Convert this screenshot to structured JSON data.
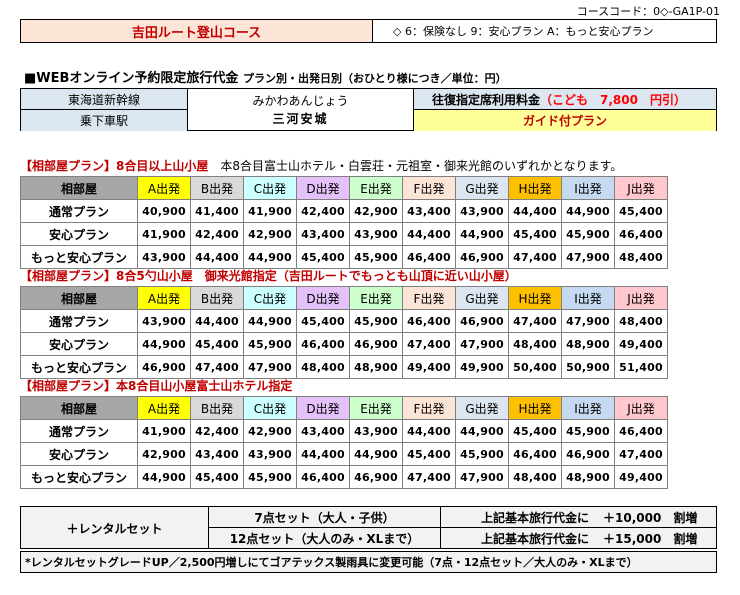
{
  "course_code": "コースコード：0◇-GA1P-01",
  "header": {
    "title": "吉田ルート登山コース",
    "note": "◇ 6：保険なし 9：安心プラン A：もっと安心プラン"
  },
  "heading": {
    "main": "■WEBオンライン予約限定旅行代金",
    "sub": "プラン別・出発日別（おひとり様につき／単位：円）"
  },
  "info": {
    "line": "東海道新幹線",
    "station": "乗下車駅",
    "reading": "みかわあんじょう",
    "name": "三河安城",
    "fare_label": "往復指定席利用料金",
    "fare_child": "（こども　7,800　円引）",
    "guide": "ガイド付プラン"
  },
  "colors": {
    "A": "#ffff00",
    "B": "#d9d9d9",
    "C": "#ccffff",
    "D": "#e4c1f9",
    "E": "#ccffcc",
    "F": "#fce4d6",
    "G": "#dce6f1",
    "H": "#ffc000",
    "I": "#c5d9f1",
    "J": "#ffc7ce"
  },
  "columns": [
    "相部屋",
    "A出発",
    "B出発",
    "C出発",
    "D出発",
    "E出発",
    "F出発",
    "G出発",
    "H出発",
    "I出発",
    "J出発"
  ],
  "sections": [
    {
      "title": "【相部屋プラン】8合目以上山小屋",
      "note": "　本8合目富士山ホテル・白雲荘・元祖室・御来光館のいずれかとなります。",
      "rows": [
        {
          "plan": "通常プラン",
          "prices": [
            "40,900",
            "41,400",
            "41,900",
            "42,400",
            "42,900",
            "43,400",
            "43,900",
            "44,400",
            "44,900",
            "45,400"
          ]
        },
        {
          "plan": "安心プラン",
          "prices": [
            "41,900",
            "42,400",
            "42,900",
            "43,400",
            "43,900",
            "44,400",
            "44,900",
            "45,400",
            "45,900",
            "46,400"
          ]
        },
        {
          "plan": "もっと安心プラン",
          "prices": [
            "43,900",
            "44,400",
            "44,900",
            "45,400",
            "45,900",
            "46,400",
            "46,900",
            "47,400",
            "47,900",
            "48,400"
          ]
        }
      ]
    },
    {
      "title": "【相部屋プラン】8合5勺山小屋　御来光館指定（吉田ルートでもっとも山頂に近い山小屋）",
      "note": "",
      "rows": [
        {
          "plan": "通常プラン",
          "prices": [
            "43,900",
            "44,400",
            "44,900",
            "45,400",
            "45,900",
            "46,400",
            "46,900",
            "47,400",
            "47,900",
            "48,400"
          ]
        },
        {
          "plan": "安心プラン",
          "prices": [
            "44,900",
            "45,400",
            "45,900",
            "46,400",
            "46,900",
            "47,400",
            "47,900",
            "48,400",
            "48,900",
            "49,400"
          ]
        },
        {
          "plan": "もっと安心プラン",
          "prices": [
            "46,900",
            "47,400",
            "47,900",
            "48,400",
            "48,900",
            "49,400",
            "49,900",
            "50,400",
            "50,900",
            "51,400"
          ]
        }
      ]
    },
    {
      "title": "【相部屋プラン】本8合目山小屋富士山ホテル指定",
      "note": "",
      "rows": [
        {
          "plan": "通常プラン",
          "prices": [
            "41,900",
            "42,400",
            "42,900",
            "43,400",
            "43,900",
            "44,400",
            "44,900",
            "45,400",
            "45,900",
            "46,400"
          ]
        },
        {
          "plan": "安心プラン",
          "prices": [
            "42,900",
            "43,400",
            "43,900",
            "44,400",
            "44,900",
            "45,400",
            "45,900",
            "46,400",
            "46,900",
            "47,400"
          ]
        },
        {
          "plan": "もっと安心プラン",
          "prices": [
            "44,900",
            "45,400",
            "45,900",
            "46,400",
            "46,900",
            "47,400",
            "47,900",
            "48,400",
            "48,900",
            "49,400"
          ]
        }
      ]
    }
  ],
  "rental": {
    "title": "＋レンタルセット",
    "set7": "7点セット（大人・子供）",
    "set12": "12点セット（大人のみ・XLまで）",
    "price7_label": "上記基本旅行代金に",
    "price7": "＋10,000　割増",
    "price12_label": "上記基本旅行代金に",
    "price12": "＋15,000　割増"
  },
  "footnote": "*レンタルセットグレードUP／2,500円増しにてゴアテックス製雨具に変更可能（7点・12点セット／大人のみ・XLまで）"
}
